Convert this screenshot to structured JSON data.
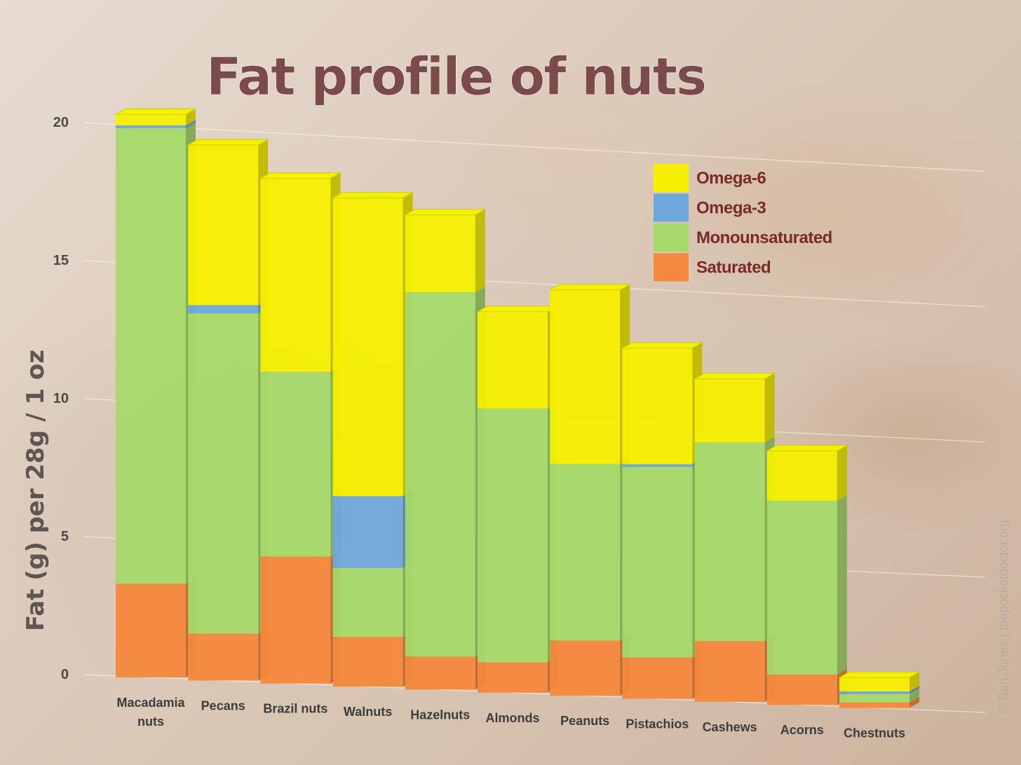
{
  "chart_data": {
    "type": "bar",
    "stacked": true,
    "title": "Fat profile of nuts",
    "ylabel": "Fat (g) per 28g / 1 oz",
    "xlabel": "",
    "ylim": [
      0,
      20
    ],
    "yticks": [
      "0",
      "5",
      "10",
      "15",
      "20"
    ],
    "grid": true,
    "legend_position": "top-right",
    "categories": [
      [
        "Macadamia",
        "nuts"
      ],
      [
        "Pecans"
      ],
      [
        "Brazil nuts"
      ],
      [
        "Walnuts"
      ],
      [
        "Hazelnuts"
      ],
      [
        "Almonds"
      ],
      [
        "Peanuts"
      ],
      [
        "Pistachios"
      ],
      [
        "Cashews"
      ],
      [
        "Acorns"
      ],
      [
        "Chestnuts"
      ]
    ],
    "series": [
      {
        "name": "Saturated",
        "color": "#f4883c",
        "values": [
          3.4,
          1.7,
          4.6,
          1.8,
          1.2,
          1.1,
          2.0,
          1.5,
          2.2,
          1.1,
          0.2
        ]
      },
      {
        "name": "Monounsaturated",
        "color": "#a6d96a",
        "values": [
          16.5,
          11.6,
          6.7,
          2.5,
          13.2,
          9.2,
          6.4,
          6.9,
          7.2,
          6.3,
          0.3
        ]
      },
      {
        "name": "Omega-3",
        "color": "#6fa8dc",
        "values": [
          0.1,
          0.3,
          0.0,
          2.6,
          0.0,
          0.0,
          0.0,
          0.1,
          0.0,
          0.0,
          0.1
        ]
      },
      {
        "name": "Omega-6",
        "color": "#f5f000",
        "values": [
          0.4,
          5.8,
          7.0,
          10.8,
          2.8,
          3.5,
          6.3,
          4.2,
          2.3,
          1.8,
          0.5
        ]
      }
    ],
    "legend": [
      "Omega-6",
      "Omega-3",
      "Monounsaturated",
      "Saturated"
    ]
  },
  "credit": "© Ben Jones | thepocketdoctor.org"
}
